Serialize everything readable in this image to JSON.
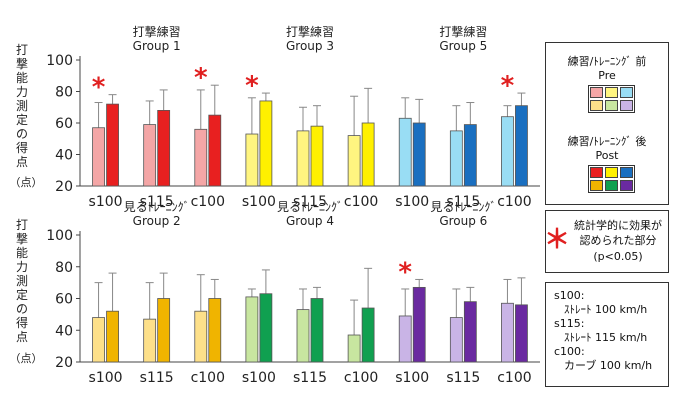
{
  "chart_data": [
    {
      "type": "bar",
      "ylabel": "打撃能力測定の得点",
      "yunit": "（点）",
      "ylim": [
        20,
        100
      ],
      "yticks": [
        20,
        40,
        60,
        80,
        100
      ],
      "grid": false,
      "groups": [
        {
          "title_line1": "打撃練習",
          "title_line2": "Group 1",
          "categories": [
            "s100",
            "s115",
            "c100"
          ],
          "pre": [
            57,
            59,
            56
          ],
          "pre_err": [
            73,
            74,
            81
          ],
          "post": [
            72,
            68,
            65
          ],
          "post_err": [
            78,
            81,
            84
          ],
          "significant": [
            true,
            false,
            true
          ],
          "pre_color": "#f4a6a6",
          "post_color": "#e82020"
        },
        {
          "title_line1": "打撃練習",
          "title_line2": "Group 3",
          "categories": [
            "s100",
            "s115",
            "c100"
          ],
          "pre": [
            53,
            55,
            52
          ],
          "pre_err": [
            76,
            70,
            77
          ],
          "post": [
            74,
            58,
            60
          ],
          "post_err": [
            79,
            71,
            82
          ],
          "significant": [
            true,
            false,
            false
          ],
          "pre_color": "#fff580",
          "post_color": "#fff000"
        },
        {
          "title_line1": "打撃練習",
          "title_line2": "Group 5",
          "categories": [
            "s100",
            "s115",
            "c100"
          ],
          "pre": [
            63,
            55,
            64
          ],
          "pre_err": [
            76,
            71,
            71
          ],
          "post": [
            60,
            59,
            71
          ],
          "post_err": [
            75,
            73,
            79
          ],
          "significant": [
            false,
            false,
            true
          ],
          "pre_color": "#99ddf4",
          "post_color": "#1a6fc0"
        }
      ]
    },
    {
      "type": "bar",
      "ylabel": "打撃能力測定の得点",
      "yunit": "（点）",
      "ylim": [
        20,
        100
      ],
      "yticks": [
        20,
        40,
        60,
        80,
        100
      ],
      "grid": false,
      "groups": [
        {
          "title_line1": "見るﾄﾚｰﾆﾝｸﾞ",
          "title_line2": "Group 2",
          "categories": [
            "s100",
            "s115",
            "c100"
          ],
          "pre": [
            48,
            47,
            52
          ],
          "pre_err": [
            70,
            70,
            75
          ],
          "post": [
            52,
            60,
            60
          ],
          "post_err": [
            76,
            76,
            72
          ],
          "significant": [
            false,
            false,
            false
          ],
          "pre_color": "#fde08a",
          "post_color": "#f0b400"
        },
        {
          "title_line1": "見るﾄﾚｰﾆﾝｸﾞ",
          "title_line2": "Group 4",
          "categories": [
            "s100",
            "s115",
            "c100"
          ],
          "pre": [
            61,
            53,
            37
          ],
          "pre_err": [
            66,
            66,
            59
          ],
          "post": [
            63,
            60,
            54
          ],
          "post_err": [
            78,
            67,
            79
          ],
          "significant": [
            false,
            false,
            false
          ],
          "pre_color": "#c8e6a0",
          "post_color": "#10a050"
        },
        {
          "title_line1": "見るﾄﾚｰﾆﾝｸﾞ",
          "title_line2": "Group 6",
          "categories": [
            "s100",
            "s115",
            "c100"
          ],
          "pre": [
            49,
            48,
            57
          ],
          "pre_err": [
            66,
            66,
            72
          ],
          "post": [
            67,
            58,
            56
          ],
          "post_err": [
            72,
            67,
            73
          ],
          "significant": [
            true,
            false,
            false
          ],
          "pre_color": "#c9b4e6",
          "post_color": "#6a2aa0"
        }
      ]
    }
  ],
  "legend": {
    "pre_label_line1": "練習/ﾄﾚｰﾆﾝｸﾞ 前",
    "pre_label_line2": "Pre",
    "post_label_line1": "練習/ﾄﾚｰﾆﾝｸﾞ 後",
    "post_label_line2": "Post",
    "pre_swatches": [
      "#f4a6a6",
      "#fff580",
      "#99ddf4",
      "#fde08a",
      "#c8e6a0",
      "#c9b4e6"
    ],
    "post_swatches": [
      "#e82020",
      "#fff000",
      "#1a6fc0",
      "#f0b400",
      "#10a050",
      "#6a2aa0"
    ]
  },
  "significance_note": {
    "star": "＊",
    "line1": "統計学的に効果が",
    "line2": "認められた部分",
    "line3": "(p<0.05)"
  },
  "key": {
    "line1": "s100:",
    "line2": "ｽﾄﾚｰﾄ 100 km/h",
    "line3": "s115:",
    "line4": "ｽﾄﾚｰﾄ 115 km/h",
    "line5": "c100:",
    "line6": "カーブ 100 km/h"
  },
  "colors": {
    "star": "#e02020",
    "axis": "#444444",
    "error_bar": "#888888"
  }
}
